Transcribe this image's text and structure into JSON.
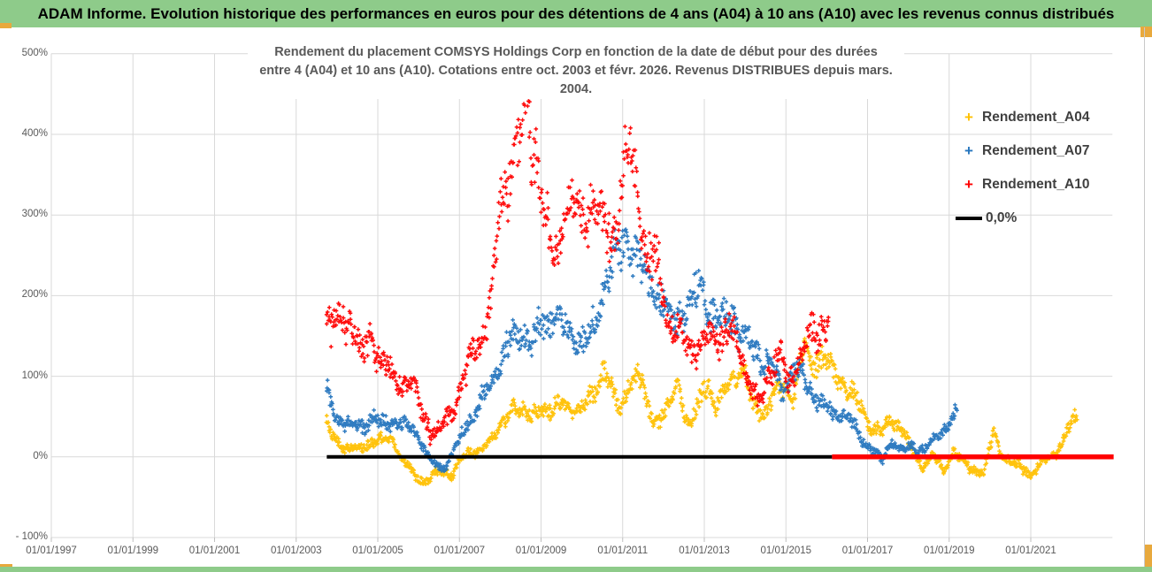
{
  "header": {
    "title": "ADAM Informe. Evolution historique des performances en euros pour des détentions de 4 ans (A04) à 10 ans (A10) avec les revenus connus distribués"
  },
  "chart_title": {
    "line1": "Rendement du placement COMSYS Holdings Corp en fonction de la date de début pour des durées",
    "line2": "entre 4 (A04) et 10 ans (A10). Cotations entre oct. 2003 et févr. 2026. Revenus DISTRIBUES depuis mars. 2004."
  },
  "legend": {
    "items": [
      {
        "label": "Rendement_A04",
        "marker": "+",
        "color": "#FFC000"
      },
      {
        "label": "Rendement_A07",
        "marker": "+",
        "color": "#2575BE"
      },
      {
        "label": "Rendement_A10",
        "marker": "+",
        "color": "#FF0000"
      }
    ],
    "zero_item": {
      "label": "0,0%",
      "color": "#000000"
    }
  },
  "axes": {
    "y_tick_labels": [
      "500%",
      "400%",
      "300%",
      "200%",
      "100%",
      "0%",
      "- 100%"
    ],
    "x_tick_labels": [
      "01/01/1997",
      "01/01/1999",
      "01/01/2001",
      "01/01/2003",
      "01/01/2005",
      "01/01/2007",
      "01/01/2009",
      "01/01/2011",
      "01/01/2013",
      "01/01/2015",
      "01/01/2017",
      "01/01/2019",
      "01/01/2021"
    ]
  },
  "colors": {
    "header_green": "#8ECB8A",
    "gold_accent": "#E8A93D",
    "grid": "#D9D9D9",
    "axis_text": "#595959",
    "title_text": "#595959",
    "series_a04": "#FFC000",
    "series_a07": "#2575BE",
    "series_a10": "#FF0000",
    "zero_line_black": "#000000",
    "zero_line_red": "#FF0000"
  },
  "chart_data": {
    "type": "scatter",
    "title": "Rendement du placement COMSYS Holdings Corp en fonction de la date de début pour des durées entre 4 (A04) et 10 ans (A10). Cotations entre oct. 2003 et févr. 2026. Revenus DISTRIBUES depuis mars. 2004.",
    "x_axis": {
      "tick_years": [
        1997,
        1999,
        2001,
        2003,
        2005,
        2007,
        2009,
        2011,
        2013,
        2015,
        2017,
        2019,
        2021
      ],
      "min": 1996.9,
      "max": 2023.3
    },
    "y_axis": {
      "tick_pcts": [
        500,
        400,
        300,
        200,
        100,
        0,
        -100
      ],
      "min": -100,
      "max": 500,
      "unit": "%"
    },
    "grid": true,
    "legend_position": "right-inside",
    "marker": "plus",
    "series": [
      {
        "name": "Rendement_A04",
        "color": "#FFC000",
        "t_start": 2003.75,
        "t_end": 2022.15,
        "noise_base": 5,
        "noise_k": 0.1,
        "anchors_t_pct": [
          [
            2003.75,
            40
          ],
          [
            2003.9,
            25
          ],
          [
            2004.2,
            12
          ],
          [
            2004.5,
            8
          ],
          [
            2004.8,
            18
          ],
          [
            2005.1,
            20
          ],
          [
            2005.35,
            25
          ],
          [
            2005.6,
            -5
          ],
          [
            2005.9,
            -22
          ],
          [
            2006.15,
            -32
          ],
          [
            2006.5,
            -18
          ],
          [
            2006.8,
            -22
          ],
          [
            2007.0,
            -8
          ],
          [
            2007.2,
            5
          ],
          [
            2007.5,
            8
          ],
          [
            2007.8,
            20
          ],
          [
            2008.0,
            42
          ],
          [
            2008.3,
            55
          ],
          [
            2008.6,
            62
          ],
          [
            2008.9,
            48
          ],
          [
            2009.2,
            60
          ],
          [
            2009.5,
            66
          ],
          [
            2009.8,
            55
          ],
          [
            2010.1,
            70
          ],
          [
            2010.35,
            75
          ],
          [
            2010.55,
            115
          ],
          [
            2010.75,
            85
          ],
          [
            2010.95,
            50
          ],
          [
            2011.15,
            90
          ],
          [
            2011.35,
            108
          ],
          [
            2011.55,
            75
          ],
          [
            2011.75,
            40
          ],
          [
            2011.95,
            55
          ],
          [
            2012.15,
            60
          ],
          [
            2012.35,
            88
          ],
          [
            2012.65,
            38
          ],
          [
            2012.9,
            70
          ],
          [
            2013.05,
            92
          ],
          [
            2013.3,
            65
          ],
          [
            2013.55,
            85
          ],
          [
            2013.75,
            100
          ],
          [
            2013.95,
            110
          ],
          [
            2014.2,
            62
          ],
          [
            2014.45,
            55
          ],
          [
            2014.7,
            75
          ],
          [
            2014.95,
            88
          ],
          [
            2015.2,
            80
          ],
          [
            2015.45,
            138
          ],
          [
            2015.65,
            115
          ],
          [
            2015.9,
            130
          ],
          [
            2016.1,
            108
          ],
          [
            2016.35,
            95
          ],
          [
            2016.6,
            80
          ],
          [
            2016.85,
            58
          ],
          [
            2017.1,
            38
          ],
          [
            2017.35,
            28
          ],
          [
            2017.6,
            48
          ],
          [
            2017.85,
            35
          ],
          [
            2018.1,
            5
          ],
          [
            2018.35,
            -12
          ],
          [
            2018.6,
            2
          ],
          [
            2018.85,
            -18
          ],
          [
            2019.1,
            8
          ],
          [
            2019.35,
            -8
          ],
          [
            2019.6,
            -15
          ],
          [
            2019.85,
            -20
          ],
          [
            2020.1,
            33
          ],
          [
            2020.25,
            5
          ],
          [
            2020.5,
            -8
          ],
          [
            2020.75,
            -12
          ],
          [
            2021.0,
            -22
          ],
          [
            2021.25,
            -10
          ],
          [
            2021.5,
            0
          ],
          [
            2021.75,
            15
          ],
          [
            2021.95,
            38
          ],
          [
            2022.15,
            57
          ]
        ]
      },
      {
        "name": "Rendement_A07",
        "color": "#2575BE",
        "t_start": 2003.75,
        "t_end": 2019.2,
        "noise_base": 5,
        "noise_k": 0.1,
        "anchors_t_pct": [
          [
            2003.75,
            80
          ],
          [
            2003.95,
            55
          ],
          [
            2004.2,
            42
          ],
          [
            2004.5,
            38
          ],
          [
            2004.8,
            45
          ],
          [
            2005.1,
            42
          ],
          [
            2005.4,
            45
          ],
          [
            2005.7,
            38
          ],
          [
            2005.95,
            30
          ],
          [
            2006.2,
            2
          ],
          [
            2006.45,
            -12
          ],
          [
            2006.7,
            -8
          ],
          [
            2006.95,
            15
          ],
          [
            2007.2,
            42
          ],
          [
            2007.5,
            65
          ],
          [
            2007.8,
            95
          ],
          [
            2008.05,
            125
          ],
          [
            2008.3,
            148
          ],
          [
            2008.55,
            158
          ],
          [
            2008.8,
            138
          ],
          [
            2009.05,
            170
          ],
          [
            2009.3,
            178
          ],
          [
            2009.55,
            158
          ],
          [
            2009.8,
            152
          ],
          [
            2010.05,
            142
          ],
          [
            2010.3,
            155
          ],
          [
            2010.6,
            228
          ],
          [
            2010.9,
            252
          ],
          [
            2011.15,
            272
          ],
          [
            2011.4,
            240
          ],
          [
            2011.65,
            215
          ],
          [
            2011.9,
            202
          ],
          [
            2012.15,
            162
          ],
          [
            2012.4,
            175
          ],
          [
            2012.65,
            190
          ],
          [
            2012.9,
            205
          ],
          [
            2013.15,
            188
          ],
          [
            2013.4,
            168
          ],
          [
            2013.65,
            178
          ],
          [
            2013.9,
            155
          ],
          [
            2014.15,
            135
          ],
          [
            2014.4,
            122
          ],
          [
            2014.65,
            112
          ],
          [
            2014.9,
            78
          ],
          [
            2015.15,
            112
          ],
          [
            2015.4,
            98
          ],
          [
            2015.65,
            80
          ],
          [
            2015.9,
            65
          ],
          [
            2016.15,
            52
          ],
          [
            2016.4,
            58
          ],
          [
            2016.65,
            38
          ],
          [
            2016.9,
            18
          ],
          [
            2017.15,
            8
          ],
          [
            2017.35,
            -5
          ],
          [
            2017.6,
            22
          ],
          [
            2017.85,
            8
          ],
          [
            2018.1,
            12
          ],
          [
            2018.35,
            8
          ],
          [
            2018.6,
            18
          ],
          [
            2018.85,
            32
          ],
          [
            2019.05,
            48
          ],
          [
            2019.2,
            55
          ]
        ]
      },
      {
        "name": "Rendement_A10",
        "color": "#FF0000",
        "t_start": 2003.75,
        "t_end": 2016.05,
        "noise_base": 7,
        "noise_k": 0.09,
        "anchors_t_pct": [
          [
            2003.75,
            170
          ],
          [
            2003.95,
            158
          ],
          [
            2004.15,
            172
          ],
          [
            2004.4,
            168
          ],
          [
            2004.6,
            122
          ],
          [
            2004.85,
            148
          ],
          [
            2005.05,
            125
          ],
          [
            2005.3,
            105
          ],
          [
            2005.55,
            92
          ],
          [
            2005.8,
            102
          ],
          [
            2006.05,
            62
          ],
          [
            2006.3,
            28
          ],
          [
            2006.55,
            35
          ],
          [
            2006.8,
            55
          ],
          [
            2007.05,
            92
          ],
          [
            2007.3,
            128
          ],
          [
            2007.55,
            148
          ],
          [
            2007.8,
            205
          ],
          [
            2007.95,
            280
          ],
          [
            2008.1,
            340
          ],
          [
            2008.3,
            370
          ],
          [
            2008.5,
            400
          ],
          [
            2008.65,
            440
          ],
          [
            2008.8,
            385
          ],
          [
            2009.0,
            345
          ],
          [
            2009.2,
            260
          ],
          [
            2009.4,
            245
          ],
          [
            2009.6,
            315
          ],
          [
            2009.8,
            300
          ],
          [
            2010.0,
            295
          ],
          [
            2010.2,
            330
          ],
          [
            2010.4,
            300
          ],
          [
            2010.6,
            280
          ],
          [
            2010.8,
            290
          ],
          [
            2011.0,
            340
          ],
          [
            2011.15,
            385
          ],
          [
            2011.35,
            330
          ],
          [
            2011.6,
            255
          ],
          [
            2011.85,
            230
          ],
          [
            2012.1,
            175
          ],
          [
            2012.35,
            150
          ],
          [
            2012.6,
            135
          ],
          [
            2012.85,
            135
          ],
          [
            2013.1,
            150
          ],
          [
            2013.35,
            148
          ],
          [
            2013.6,
            158
          ],
          [
            2013.85,
            135
          ],
          [
            2014.1,
            95
          ],
          [
            2014.35,
            62
          ],
          [
            2014.6,
            105
          ],
          [
            2014.85,
            135
          ],
          [
            2015.05,
            82
          ],
          [
            2015.3,
            118
          ],
          [
            2015.55,
            155
          ],
          [
            2015.8,
            145
          ],
          [
            2016.05,
            178
          ]
        ]
      }
    ],
    "zero_line_segments": [
      {
        "color": "#000000",
        "t_start": 2003.75,
        "t_end": 2016.13,
        "width": 4
      },
      {
        "color": "#FF0000",
        "t_start": 2016.13,
        "t_end": 2023.03,
        "width": 5.5
      }
    ]
  }
}
